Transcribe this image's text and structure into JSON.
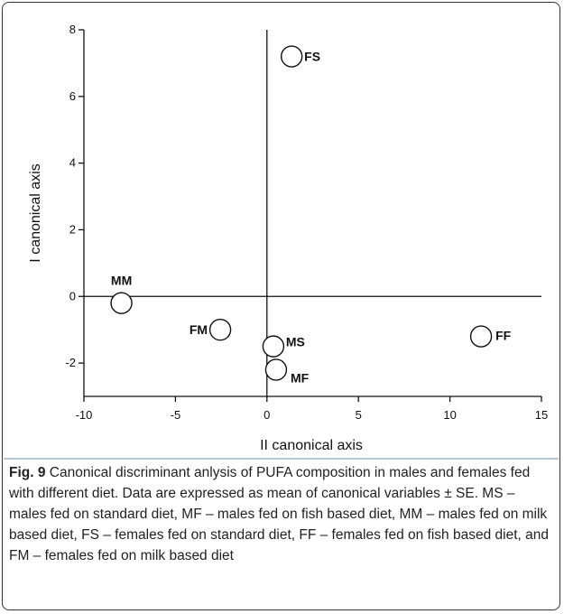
{
  "chart_data": {
    "type": "scatter",
    "x_label": "II canonical axis",
    "y_label": "I canonical axis",
    "labels": [
      "FS",
      "MM",
      "FM",
      "MS",
      "MF",
      "FF"
    ],
    "x": [
      1.35,
      -7.95,
      -2.55,
      0.35,
      0.5,
      11.7
    ],
    "values": [
      7.2,
      -0.2,
      -1.0,
      -1.5,
      -2.2,
      -1.2
    ],
    "xlim": [
      -10,
      15
    ],
    "xticks": [
      -10,
      -5,
      0,
      5,
      10,
      15
    ],
    "ylim": [
      -3,
      8
    ],
    "yticks": [
      -2,
      0,
      2,
      4,
      6,
      8
    ],
    "reference_lines": {
      "x": 0,
      "y": 0
    }
  },
  "caption": {
    "label": "Fig. 9",
    "text": "Canonical discriminant anlysis of PUFA composition in males and females fed with different diet. Data are expressed as mean of canonical variables ± SE. MS – males fed on standard diet, MF – males fed on fish based diet, MM – males fed on milk based diet, FS – females fed on standard diet, FF – females fed on fish based diet, and FM – females fed on milk based diet"
  }
}
